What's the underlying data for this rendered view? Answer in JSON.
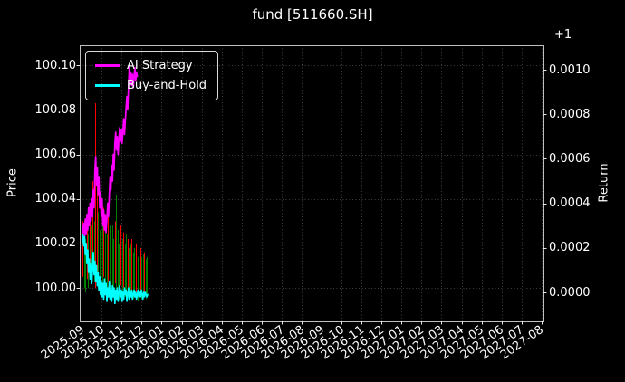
{
  "figure": {
    "background": "#000000",
    "text_color": "#ffffff",
    "grid_color": "#3f3f3f",
    "spine_color": "#c0c0c0"
  },
  "chart_data": {
    "type": "line",
    "title": "fund [511660.SH]",
    "grid": true,
    "legend_position": "upper left",
    "legend": [
      {
        "label": "AI Strategy",
        "color": "#ff00ff"
      },
      {
        "label": "Buy-and-Hold",
        "color": "#00ffff"
      }
    ],
    "left_axis": {
      "label": "Price",
      "ticks": [
        100.0,
        100.02,
        100.04,
        100.06,
        100.08,
        100.1
      ],
      "tick_labels": [
        "100.00",
        "100.02",
        "100.04",
        "100.06",
        "100.08",
        "100.10"
      ],
      "range": [
        99.985,
        100.109
      ]
    },
    "right_axis": {
      "label": "Return",
      "offset_text": "+1",
      "ticks": [
        0.0,
        0.0002,
        0.0004,
        0.0006,
        0.0008,
        0.001
      ],
      "tick_labels": [
        "0.0000",
        "0.0002",
        "0.0004",
        "0.0006",
        "0.0008",
        "0.0010"
      ],
      "range": [
        -0.00013,
        0.00111
      ]
    },
    "x_axis": {
      "unit": "months_since_2025-09",
      "tick_labels": [
        "2025-09",
        "2025-10",
        "2025-11",
        "2025-12",
        "2026-01",
        "2026-02",
        "2026-03",
        "2026-04",
        "2026-05",
        "2026-06",
        "2026-07",
        "2026-08",
        "2026-09",
        "2026-10",
        "2026-11",
        "2026-12",
        "2027-01",
        "2027-02",
        "2027-03",
        "2027-04",
        "2027-05",
        "2027-06",
        "2027-07",
        "2027-08"
      ],
      "range": [
        -0.1,
        23.1
      ]
    },
    "series": [
      {
        "name": "AI Strategy",
        "color": "#ff00ff",
        "axis": "right",
        "points": [
          [
            0.05,
            0.00027
          ],
          [
            0.1,
            0.00031
          ],
          [
            0.14,
            0.00024
          ],
          [
            0.18,
            0.00033
          ],
          [
            0.22,
            0.00026
          ],
          [
            0.26,
            0.00035
          ],
          [
            0.3,
            0.00028
          ],
          [
            0.34,
            0.00038
          ],
          [
            0.38,
            0.0003
          ],
          [
            0.42,
            0.0004
          ],
          [
            0.46,
            0.00032
          ],
          [
            0.5,
            0.00042
          ],
          [
            0.54,
            0.00034
          ],
          [
            0.58,
            0.00046
          ],
          [
            0.62,
            0.00038
          ],
          [
            0.66,
            0.00055
          ],
          [
            0.7,
            0.00061
          ],
          [
            0.74,
            0.00048
          ],
          [
            0.78,
            0.00056
          ],
          [
            0.82,
            0.00044
          ],
          [
            0.86,
            0.00052
          ],
          [
            0.9,
            0.00038
          ],
          [
            0.94,
            0.00045
          ],
          [
            0.98,
            0.00034
          ],
          [
            1.02,
            0.00042
          ],
          [
            1.06,
            0.0003
          ],
          [
            1.1,
            0.00037
          ],
          [
            1.14,
            0.00028
          ],
          [
            1.18,
            0.00035
          ],
          [
            1.22,
            0.00027
          ],
          [
            1.26,
            0.00033
          ],
          [
            1.3,
            0.0004
          ],
          [
            1.34,
            0.00034
          ],
          [
            1.38,
            0.00044
          ],
          [
            1.42,
            0.00052
          ],
          [
            1.46,
            0.00046
          ],
          [
            1.5,
            0.00057
          ],
          [
            1.54,
            0.0005
          ],
          [
            1.58,
            0.00062
          ],
          [
            1.62,
            0.00055
          ],
          [
            1.66,
            0.00067
          ],
          [
            1.7,
            0.00072
          ],
          [
            1.74,
            0.00064
          ],
          [
            1.78,
            0.0007
          ],
          [
            1.82,
            0.00062
          ],
          [
            1.86,
            0.00069
          ],
          [
            1.9,
            0.00074
          ],
          [
            1.94,
            0.00068
          ],
          [
            1.98,
            0.00073
          ],
          [
            2.02,
            0.00067
          ],
          [
            2.06,
            0.00072
          ],
          [
            2.1,
            0.00078
          ],
          [
            2.14,
            0.00071
          ],
          [
            2.18,
            0.00077
          ],
          [
            2.22,
            0.00083
          ],
          [
            2.26,
            0.00088
          ],
          [
            2.3,
            0.00082
          ],
          [
            2.34,
            0.00092
          ],
          [
            2.38,
            0.00101
          ],
          [
            2.42,
            0.00094
          ],
          [
            2.46,
            0.00099
          ],
          [
            2.5,
            0.00093
          ],
          [
            2.54,
            0.00098
          ],
          [
            2.58,
            0.00092
          ],
          [
            2.62,
            0.00097
          ],
          [
            2.66,
            0.00101
          ],
          [
            2.7,
            0.00095
          ],
          [
            2.74,
            0.00099
          ],
          [
            2.78,
            0.00097
          ]
        ]
      },
      {
        "name": "Buy-and-Hold",
        "color": "#00ffff",
        "axis": "right",
        "points": [
          [
            0.05,
            0.00026
          ],
          [
            0.1,
            0.00021
          ],
          [
            0.14,
            0.00025
          ],
          [
            0.18,
            0.00017
          ],
          [
            0.22,
            0.00022
          ],
          [
            0.26,
            0.00013
          ],
          [
            0.3,
            0.00019
          ],
          [
            0.34,
            9e-05
          ],
          [
            0.38,
            0.00015
          ],
          [
            0.42,
            6e-05
          ],
          [
            0.46,
            0.00013
          ],
          [
            0.5,
            4e-05
          ],
          [
            0.54,
            0.00011
          ],
          [
            0.58,
            0.00018
          ],
          [
            0.62,
            8e-05
          ],
          [
            0.66,
            0.00014
          ],
          [
            0.7,
            5e-05
          ],
          [
            0.74,
            0.00012
          ],
          [
            0.78,
            3e-05
          ],
          [
            0.82,
            9e-05
          ],
          [
            0.86,
            1e-05
          ],
          [
            0.9,
            7e-05
          ],
          [
            0.94,
            -1e-05
          ],
          [
            0.98,
            5e-05
          ],
          [
            1.02,
            -2e-05
          ],
          [
            1.06,
            4e-05
          ],
          [
            1.1,
            -3e-05
          ],
          [
            1.14,
            6e-05
          ],
          [
            1.18,
            -1e-05
          ],
          [
            1.22,
            4e-05
          ],
          [
            1.26,
            -4e-05
          ],
          [
            1.3,
            2e-05
          ],
          [
            1.34,
            -2e-05
          ],
          [
            1.38,
            5e-05
          ],
          [
            1.42,
            -3e-05
          ],
          [
            1.46,
            1e-05
          ],
          [
            1.5,
            -4e-05
          ],
          [
            1.54,
            3e-05
          ],
          [
            1.58,
            -2e-05
          ],
          [
            1.62,
            2e-05
          ],
          [
            1.66,
            -5e-05
          ],
          [
            1.7,
            1e-05
          ],
          [
            1.74,
            -3e-05
          ],
          [
            1.78,
            2e-05
          ],
          [
            1.82,
            -4e-05
          ],
          [
            1.86,
            0.0
          ],
          [
            1.9,
            3e-05
          ],
          [
            1.94,
            -2e-05
          ],
          [
            1.98,
            1e-05
          ],
          [
            2.02,
            -4e-05
          ],
          [
            2.06,
            0.0
          ],
          [
            2.1,
            -3e-05
          ],
          [
            2.14,
            2e-05
          ],
          [
            2.18,
            -1e-05
          ],
          [
            2.22,
            1e-05
          ],
          [
            2.26,
            -4e-05
          ],
          [
            2.3,
            -1e-05
          ],
          [
            2.34,
            2e-05
          ],
          [
            2.38,
            -3e-05
          ],
          [
            2.42,
            0.0
          ],
          [
            2.46,
            -2e-05
          ],
          [
            2.5,
            1e-05
          ],
          [
            2.54,
            -3e-05
          ],
          [
            2.58,
            -1e-05
          ],
          [
            2.62,
            1e-05
          ],
          [
            2.66,
            -2e-05
          ],
          [
            2.7,
            0.0
          ],
          [
            2.74,
            -3e-05
          ],
          [
            2.78,
            -1e-05
          ],
          [
            2.82,
            1e-05
          ],
          [
            2.86,
            -2e-05
          ],
          [
            2.9,
            0.0
          ],
          [
            2.94,
            -2e-05
          ],
          [
            2.98,
            1e-05
          ],
          [
            3.02,
            -1e-05
          ],
          [
            3.06,
            -3e-05
          ],
          [
            3.1,
            0.0
          ],
          [
            3.14,
            -2e-05
          ],
          [
            3.18,
            0.0
          ],
          [
            3.22,
            -1e-05
          ],
          [
            3.26,
            -2e-05
          ],
          [
            3.3,
            -1e-05
          ]
        ]
      }
    ],
    "price_bars": {
      "axis": "left",
      "up_color": "#ff0000",
      "down_color": "#008000",
      "bars": [
        [
          0.05,
          100.005,
          100.03,
          "r"
        ],
        [
          0.12,
          100.0,
          100.026,
          "g"
        ],
        [
          0.19,
          99.998,
          100.022,
          "g"
        ],
        [
          0.26,
          100.004,
          100.032,
          "r"
        ],
        [
          0.33,
          100.0,
          100.024,
          "g"
        ],
        [
          0.4,
          100.006,
          100.036,
          "r"
        ],
        [
          0.47,
          100.002,
          100.028,
          "g"
        ],
        [
          0.54,
          100.008,
          100.048,
          "r"
        ],
        [
          0.61,
          100.003,
          100.03,
          "g"
        ],
        [
          0.68,
          100.0,
          100.083,
          "r"
        ],
        [
          0.75,
          100.006,
          100.052,
          "r"
        ],
        [
          0.82,
          100.0,
          100.034,
          "g"
        ],
        [
          0.89,
          99.998,
          100.026,
          "g"
        ],
        [
          0.96,
          100.004,
          100.04,
          "r"
        ],
        [
          1.03,
          100.0,
          100.028,
          "g"
        ],
        [
          1.1,
          100.005,
          100.036,
          "r"
        ],
        [
          1.17,
          100.0,
          100.03,
          "g"
        ],
        [
          1.24,
          99.997,
          100.024,
          "g"
        ],
        [
          1.31,
          100.003,
          100.034,
          "r"
        ],
        [
          1.38,
          99.999,
          100.028,
          "g"
        ],
        [
          1.45,
          100.004,
          100.038,
          "r"
        ],
        [
          1.52,
          100.0,
          100.028,
          "g"
        ],
        [
          1.59,
          99.996,
          100.022,
          "g"
        ],
        [
          1.66,
          100.002,
          100.03,
          "r"
        ],
        [
          1.73,
          99.998,
          100.042,
          "g"
        ],
        [
          1.8,
          100.0,
          100.026,
          "g"
        ],
        [
          1.87,
          99.995,
          100.02,
          "g"
        ],
        [
          1.94,
          100.001,
          100.028,
          "r"
        ],
        [
          2.01,
          99.997,
          100.022,
          "g"
        ],
        [
          2.08,
          100.0,
          100.025,
          "r"
        ],
        [
          2.15,
          99.996,
          100.02,
          "g"
        ],
        [
          2.22,
          99.998,
          100.024,
          "g"
        ],
        [
          2.29,
          100.0,
          100.022,
          "r"
        ],
        [
          2.36,
          99.995,
          100.018,
          "g"
        ],
        [
          2.43,
          99.997,
          100.02,
          "g"
        ],
        [
          2.5,
          99.999,
          100.022,
          "r"
        ],
        [
          2.57,
          99.995,
          100.016,
          "g"
        ],
        [
          2.64,
          99.997,
          100.018,
          "g"
        ],
        [
          2.71,
          99.998,
          100.02,
          "r"
        ],
        [
          2.78,
          99.994,
          100.014,
          "g"
        ],
        [
          2.85,
          99.996,
          100.016,
          "g"
        ],
        [
          2.92,
          99.997,
          100.018,
          "r"
        ],
        [
          2.99,
          99.995,
          100.014,
          "g"
        ],
        [
          3.06,
          99.996,
          100.015,
          "g"
        ],
        [
          3.13,
          99.997,
          100.016,
          "r"
        ],
        [
          3.2,
          99.995,
          100.013,
          "g"
        ],
        [
          3.27,
          99.996,
          100.014,
          "g"
        ],
        [
          3.34,
          99.997,
          100.015,
          "r"
        ]
      ]
    }
  }
}
